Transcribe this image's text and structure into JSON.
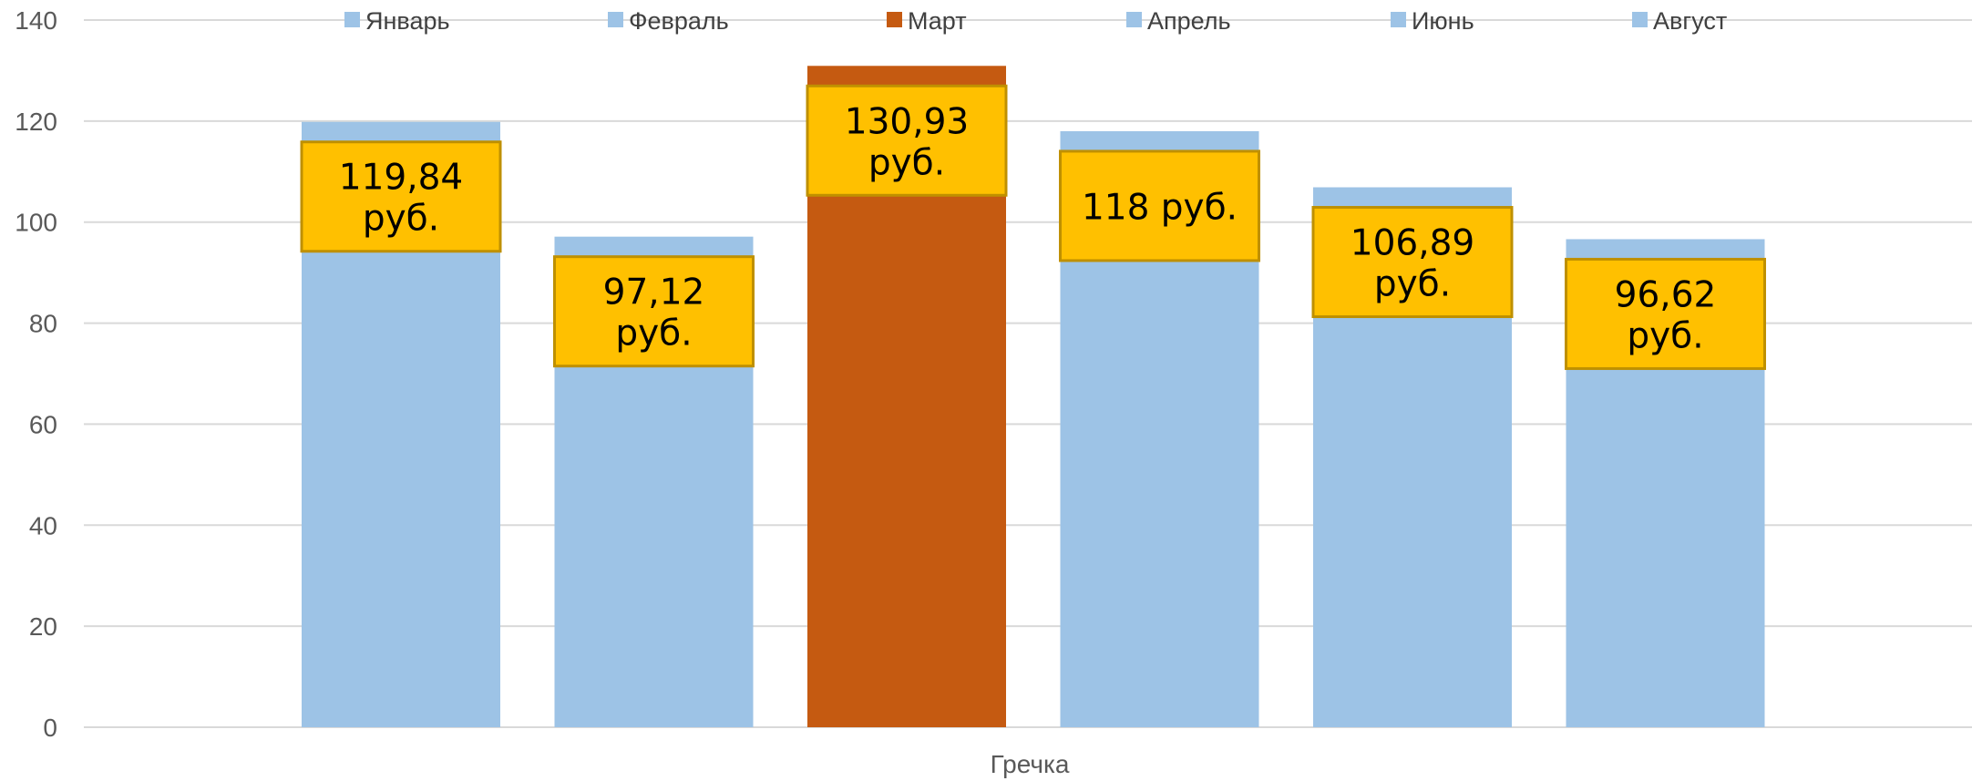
{
  "chart_data": {
    "type": "bar",
    "category": "Гречка",
    "ylim": [
      0,
      140
    ],
    "yticks": [
      0,
      20,
      40,
      60,
      80,
      100,
      120,
      140
    ],
    "grid": true,
    "legend_position": "top",
    "series": [
      {
        "name": "Январь",
        "value": 119.84,
        "label_lines": [
          "119,84",
          "руб."
        ],
        "color": "#9DC3E6"
      },
      {
        "name": "Февраль",
        "value": 97.12,
        "label_lines": [
          "97,12",
          "руб."
        ],
        "color": "#9DC3E6"
      },
      {
        "name": "Март",
        "value": 130.93,
        "label_lines": [
          "130,93",
          "руб."
        ],
        "color": "#C55A11"
      },
      {
        "name": "Апрель",
        "value": 118,
        "label_lines": [
          "118 руб."
        ],
        "color": "#9DC3E6"
      },
      {
        "name": "Июнь",
        "value": 106.89,
        "label_lines": [
          "106,89",
          "руб."
        ],
        "color": "#9DC3E6"
      },
      {
        "name": "Август",
        "value": 96.62,
        "label_lines": [
          "96,62",
          "руб."
        ],
        "color": "#9DC3E6"
      }
    ],
    "label_box": {
      "fill": "#FFC000",
      "stroke": "#BF9000"
    },
    "gridline_color": "#D9D9D9",
    "axis_color": "#D9D9D9"
  }
}
